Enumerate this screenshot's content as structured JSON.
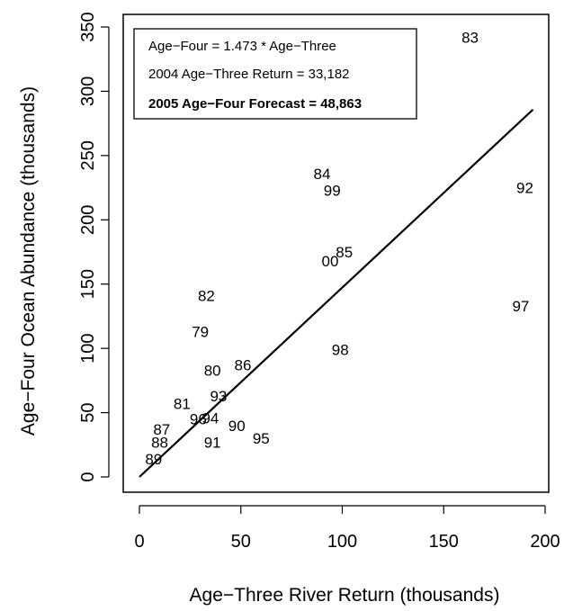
{
  "chart_data": {
    "type": "scatter",
    "xlabel": "Age−Three River Return (thousands)",
    "ylabel": "Age−Four Ocean Abundance (thousands)",
    "xlim": [
      0,
      200
    ],
    "ylim": [
      0,
      350
    ],
    "x_ticks": [
      "0",
      "50",
      "100",
      "150",
      "200"
    ],
    "y_ticks": [
      "0",
      "50",
      "100",
      "150",
      "200",
      "250",
      "300",
      "350"
    ],
    "grid": false,
    "points": [
      {
        "label": "83",
        "x": 163,
        "y": 342
      },
      {
        "label": "84",
        "x": 90,
        "y": 236
      },
      {
        "label": "99",
        "x": 95,
        "y": 223
      },
      {
        "label": "92",
        "x": 190,
        "y": 225
      },
      {
        "label": "85",
        "x": 101,
        "y": 175
      },
      {
        "label": "00",
        "x": 94,
        "y": 168
      },
      {
        "label": "82",
        "x": 33,
        "y": 141
      },
      {
        "label": "97",
        "x": 188,
        "y": 133
      },
      {
        "label": "79",
        "x": 30,
        "y": 113
      },
      {
        "label": "86",
        "x": 51,
        "y": 87
      },
      {
        "label": "98",
        "x": 99,
        "y": 99
      },
      {
        "label": "80",
        "x": 36,
        "y": 83
      },
      {
        "label": "93",
        "x": 39,
        "y": 63
      },
      {
        "label": "81",
        "x": 21,
        "y": 57
      },
      {
        "label": "87",
        "x": 11,
        "y": 37
      },
      {
        "label": "96",
        "x": 29,
        "y": 45
      },
      {
        "label": "94",
        "x": 35,
        "y": 46
      },
      {
        "label": "90",
        "x": 48,
        "y": 40
      },
      {
        "label": "88",
        "x": 10,
        "y": 27
      },
      {
        "label": "91",
        "x": 36,
        "y": 27
      },
      {
        "label": "95",
        "x": 60,
        "y": 30
      },
      {
        "label": "89",
        "x": 7,
        "y": 14
      }
    ],
    "fit_line": {
      "slope": 1.473,
      "x_range": [
        0,
        194
      ]
    },
    "legend_lines": [
      {
        "text": "Age−Four = 1.473 * Age−Three",
        "bold": false
      },
      {
        "text": "2004 Age−Three Return = 33,182",
        "bold": false
      },
      {
        "text": "2005 Age−Four Forecast = 48,863",
        "bold": true
      }
    ],
    "legend_position": "top-left"
  }
}
